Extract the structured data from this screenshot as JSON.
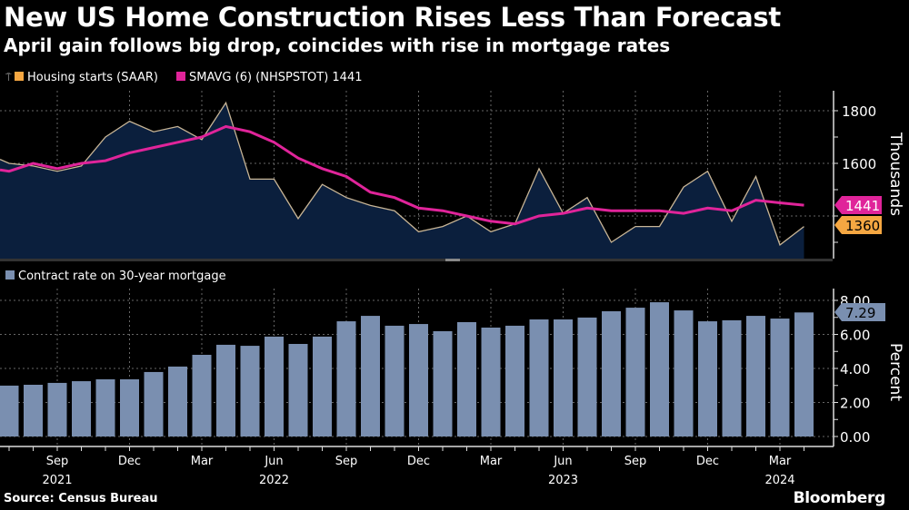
{
  "title": "New US Home Construction Rises Less Than Forecast",
  "subtitle": "April gain follows big drop, coincides with rise in mortgage rates",
  "source": "Source: Census Bureau",
  "brand": "Bloomberg",
  "chart_data": [
    {
      "type": "area",
      "ylabel": "Thousands",
      "ylim": [
        1230,
        1860
      ],
      "yticks": [
        "1800",
        "1600"
      ],
      "grid": true,
      "legend_placement": "top-left",
      "legend": [
        "Housing starts (SAAR)",
        "SMAVG (6) (NHSPSTOT) 1441"
      ],
      "x": [
        "2021-07",
        "2021-08",
        "2021-09",
        "2021-10",
        "2021-11",
        "2021-12",
        "2022-01",
        "2022-02",
        "2022-03",
        "2022-04",
        "2022-05",
        "2022-06",
        "2022-07",
        "2022-08",
        "2022-09",
        "2022-10",
        "2022-11",
        "2022-12",
        "2023-01",
        "2023-02",
        "2023-03",
        "2023-04",
        "2023-05",
        "2023-06",
        "2023-07",
        "2023-08",
        "2023-09",
        "2023-10",
        "2023-11",
        "2023-12",
        "2024-01",
        "2024-02",
        "2024-03",
        "2024-04"
      ],
      "series": [
        {
          "name": "Housing starts (SAAR)",
          "color": "#c8b596",
          "fill": "#0b1f3d",
          "last_label": "1360",
          "label_color": "#f5a742",
          "values": [
            1600,
            1590,
            1570,
            1590,
            1700,
            1760,
            1720,
            1740,
            1690,
            1830,
            1540,
            1540,
            1390,
            1520,
            1470,
            1440,
            1420,
            1340,
            1360,
            1400,
            1340,
            1370,
            1580,
            1410,
            1470,
            1300,
            1360,
            1360,
            1510,
            1570,
            1380,
            1550,
            1290,
            1360
          ]
        },
        {
          "name": "SMAVG (6) (NHSPSTOT) 1441",
          "color": "#e0249a",
          "last_label": "1441",
          "label_color": "#e0249a",
          "values": [
            1570,
            1600,
            1580,
            1600,
            1610,
            1640,
            1660,
            1680,
            1700,
            1740,
            1720,
            1680,
            1620,
            1580,
            1550,
            1490,
            1470,
            1430,
            1420,
            1400,
            1380,
            1370,
            1400,
            1410,
            1430,
            1420,
            1420,
            1420,
            1410,
            1430,
            1420,
            1460,
            1450,
            1441
          ]
        }
      ]
    },
    {
      "type": "bar",
      "ylabel": "Percent",
      "ylim": [
        -0.5,
        8.3
      ],
      "yticks": [
        "0.00",
        "2.00",
        "4.00",
        "6.00",
        "8.00"
      ],
      "grid": true,
      "legend_placement": "top-left",
      "legend": [
        "Contract rate on 30-year mortgage"
      ],
      "series": [
        {
          "name": "Contract rate on 30-year mortgage",
          "color": "#7a8fb0",
          "last_label": "7.29",
          "values": [
            2.99,
            3.04,
            3.15,
            3.25,
            3.36,
            3.36,
            3.79,
            4.11,
            4.8,
            5.39,
            5.33,
            5.87,
            5.44,
            5.87,
            6.77,
            7.09,
            6.51,
            6.61,
            6.19,
            6.72,
            6.4,
            6.51,
            6.88,
            6.88,
            6.99,
            7.36,
            7.57,
            7.89,
            7.41,
            6.77,
            6.83,
            7.09,
            6.93,
            7.29
          ]
        }
      ],
      "xtick_labels": [
        {
          "month": "Sep",
          "index": 2,
          "year": "2021"
        },
        {
          "month": "Dec",
          "index": 5
        },
        {
          "month": "Mar",
          "index": 8
        },
        {
          "month": "Jun",
          "index": 11,
          "year": "2022"
        },
        {
          "month": "Sep",
          "index": 14
        },
        {
          "month": "Dec",
          "index": 17
        },
        {
          "month": "Mar",
          "index": 20
        },
        {
          "month": "Jun",
          "index": 23,
          "year": "2023"
        },
        {
          "month": "Sep",
          "index": 26
        },
        {
          "month": "Dec",
          "index": 29
        },
        {
          "month": "Mar",
          "index": 32,
          "year": "2024"
        }
      ]
    }
  ]
}
